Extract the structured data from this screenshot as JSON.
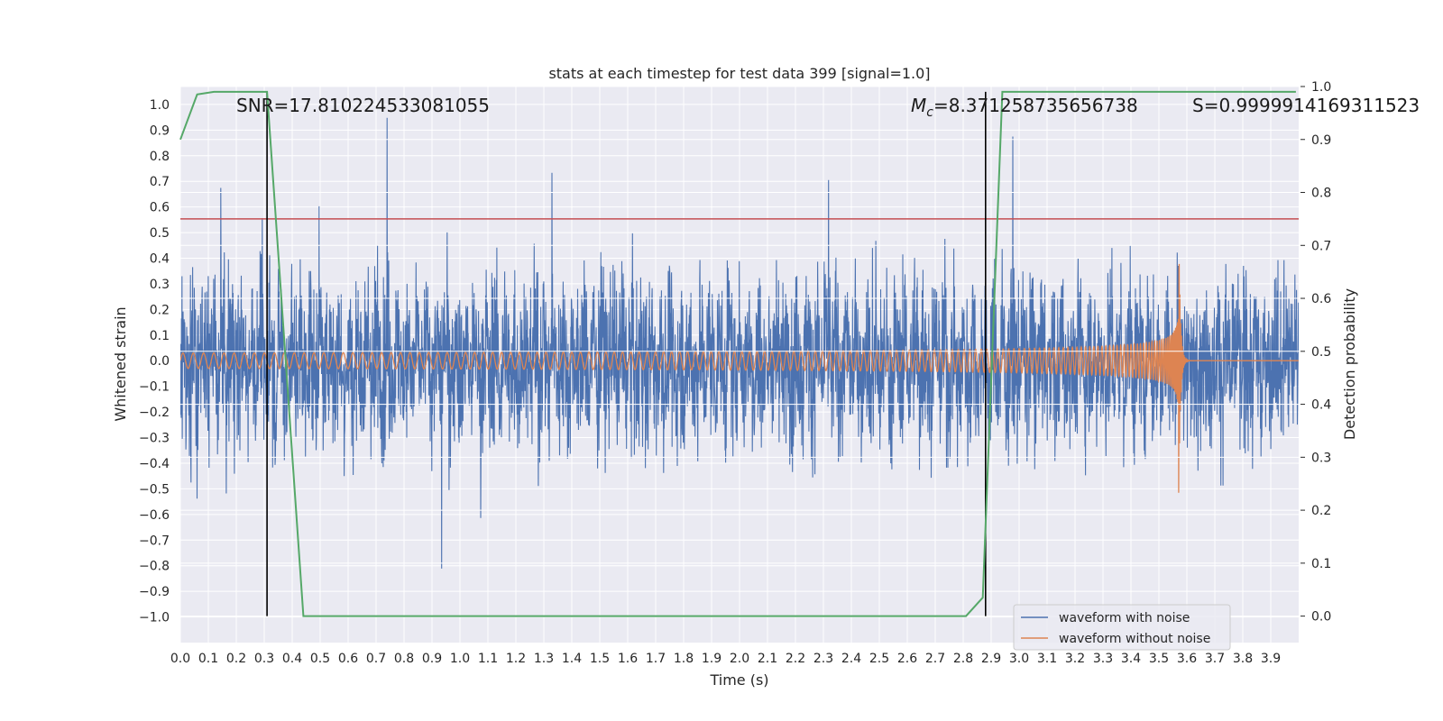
{
  "chart_data": {
    "type": "line",
    "title": "stats at each timestep for test data 399 [signal=1.0]",
    "xlabel": "Time (s)",
    "ylabel": "Whitened strain",
    "ylabel_right": "Detection probability",
    "xlim": [
      0.0,
      4.0
    ],
    "ylim": [
      -1.1,
      1.07
    ],
    "ylim_right": [
      -0.05,
      1.0
    ],
    "x_ticks": [
      "0.0",
      "0.1",
      "0.2",
      "0.3",
      "0.4",
      "0.5",
      "0.6",
      "0.7",
      "0.8",
      "0.9",
      "1.0",
      "1.1",
      "1.2",
      "1.3",
      "1.4",
      "1.5",
      "1.6",
      "1.7",
      "1.8",
      "1.9",
      "2.0",
      "2.1",
      "2.2",
      "2.3",
      "2.4",
      "2.5",
      "2.6",
      "2.7",
      "2.8",
      "2.9",
      "3.0",
      "3.1",
      "3.2",
      "3.3",
      "3.4",
      "3.5",
      "3.6",
      "3.7",
      "3.8",
      "3.9"
    ],
    "y_ticks": [
      "1.0",
      "0.9",
      "0.8",
      "0.7",
      "0.6",
      "0.5",
      "0.4",
      "0.3",
      "0.2",
      "0.1",
      "0.0",
      "-0.1",
      "-0.2",
      "-0.3",
      "-0.4",
      "-0.5",
      "-0.6",
      "-0.7",
      "-0.8",
      "-0.9",
      "-1.0"
    ],
    "y_ticks_right": [
      "1.0",
      "0.9",
      "0.8",
      "0.7",
      "0.6",
      "0.5",
      "0.4",
      "0.3",
      "0.2",
      "0.1",
      "0.0"
    ],
    "annotations": {
      "snr": "SNR=17.810224533081055",
      "mc_symbol": "M",
      "mc_sub": "c",
      "mc_value": "=8.371258735656738",
      "s": "S=0.9999914169311523"
    },
    "threshold": 0.75,
    "vlines": [
      0.31,
      2.88
    ],
    "series": [
      {
        "name": "waveform with noise",
        "color": "#4c72b0",
        "amplitude_typical": 0.3,
        "amplitude_peak": 0.95
      },
      {
        "name": "waveform without noise",
        "color": "#dd8452",
        "chirp_start": 0.0,
        "chirp_merger": 3.57,
        "amp_start": 0.03,
        "amp_peak_pos": 0.45,
        "amp_peak_neg": -0.61,
        "f_start": 27
      },
      {
        "color": "#55a868",
        "axis": "right",
        "x": [
          0.0,
          0.06,
          0.12,
          0.31,
          0.44,
          2.81,
          2.87,
          2.94,
          3.99
        ],
        "y": [
          0.9,
          0.985,
          0.99,
          0.99,
          0.0,
          0.0,
          0.035,
          0.99,
          0.99
        ]
      }
    ],
    "colors": {
      "threshold": "#c44e52",
      "vline": "#000000",
      "plot_bg": "#eaeaf2",
      "grid": "#ffffff"
    },
    "legend": {
      "placement": "lower-right"
    }
  }
}
